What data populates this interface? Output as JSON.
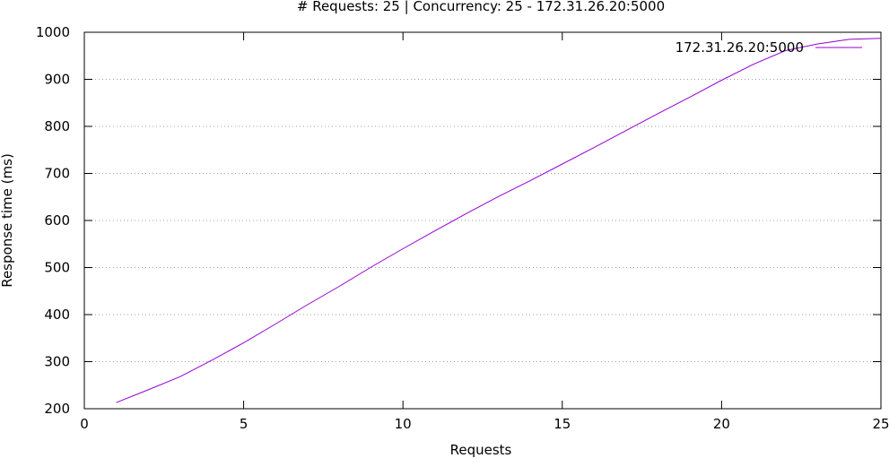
{
  "colors": {
    "series": "#9400d3",
    "axis": "#000000",
    "grid": "#a0a0a0",
    "background": "#ffffff"
  },
  "chart_data": {
    "type": "line",
    "title": "# Requests: 25 | Concurrency: 25 - 172.31.26.20:5000",
    "xlabel": "Requests",
    "ylabel": "Response time (ms)",
    "xlim": [
      0,
      25
    ],
    "ylim": [
      200,
      1000
    ],
    "xticks": [
      0,
      5,
      10,
      15,
      20,
      25
    ],
    "yticks": [
      200,
      300,
      400,
      500,
      600,
      700,
      800,
      900,
      1000
    ],
    "xtick_labels": [
      "0",
      "5",
      "10",
      "15",
      "20",
      "25"
    ],
    "ytick_labels": [
      "200",
      "300",
      "400",
      "500",
      "600",
      "700",
      "800",
      "900",
      "1000"
    ],
    "grid": "horizontal-dotted",
    "legend_position": "top-right",
    "series": [
      {
        "name": "172.31.26.20:5000",
        "x": [
          1,
          2,
          3,
          4,
          5,
          6,
          7,
          8,
          9,
          10,
          11,
          12,
          13,
          14,
          15,
          16,
          17,
          18,
          19,
          20,
          21,
          22,
          23,
          24,
          25
        ],
        "values": [
          213,
          240,
          268,
          303,
          340,
          380,
          421,
          460,
          501,
          540,
          578,
          615,
          651,
          685,
          720,
          755,
          791,
          827,
          862,
          898,
          932,
          961,
          975,
          985,
          987
        ]
      }
    ]
  }
}
